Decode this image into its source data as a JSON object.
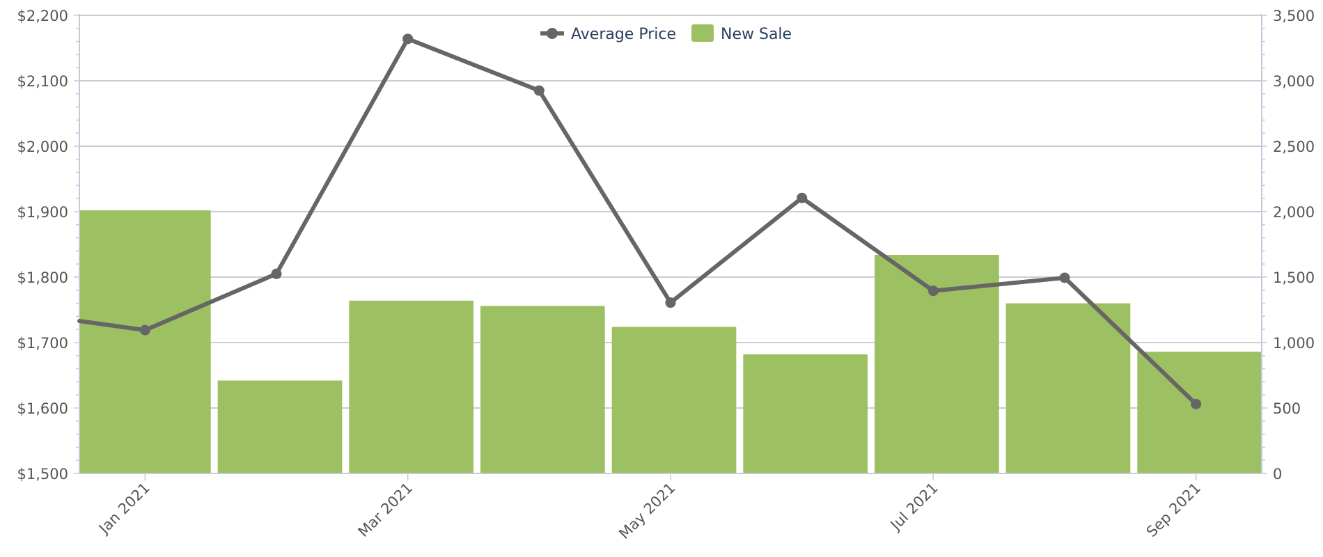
{
  "chart_data": {
    "type": "bar",
    "x_tick_labels": [
      "Jan 2021",
      "Mar 2021",
      "May 2021",
      "Jul 2021",
      "Sep 2021"
    ],
    "x_tick_positions": [
      "2021-01",
      "2021-03",
      "2021-05",
      "2021-07",
      "2021-09"
    ],
    "months": [
      "2021-01",
      "2021-02",
      "2021-03",
      "2021-04",
      "2021-05",
      "2021-06",
      "2021-07",
      "2021-08",
      "2021-09"
    ],
    "legend": {
      "placement": "top-center"
    },
    "grid": true,
    "series": [
      {
        "name": "Average Price",
        "type": "line",
        "axis": "left",
        "color": "#666666",
        "values": [
          1719,
          1805,
          2164,
          2085,
          1761,
          1921,
          1779,
          1799,
          1606
        ],
        "start_value_offchart": 1733
      },
      {
        "name": "New Sale",
        "type": "bar",
        "axis": "right",
        "color": "#9dc062",
        "values": [
          2010,
          710,
          1320,
          1280,
          1120,
          910,
          1670,
          1300,
          930
        ]
      }
    ],
    "y_left": {
      "min": 1500,
      "max": 2200,
      "ticks": [
        1500,
        1600,
        1700,
        1800,
        1900,
        2000,
        2100,
        2200
      ],
      "tick_labels": [
        "$1,500",
        "$1,600",
        "$1,700",
        "$1,800",
        "$1,900",
        "$2,000",
        "$2,100",
        "$2,200"
      ]
    },
    "y_right": {
      "min": 0,
      "max": 3500,
      "ticks": [
        0,
        500,
        1000,
        1500,
        2000,
        2500,
        3000,
        3500
      ],
      "tick_labels": [
        "0",
        "500",
        "1,000",
        "1,500",
        "2,000",
        "2,500",
        "3,000",
        "3,500"
      ]
    }
  }
}
